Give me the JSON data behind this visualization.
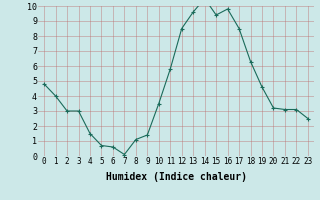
{
  "x": [
    0,
    1,
    2,
    3,
    4,
    5,
    6,
    7,
    8,
    9,
    10,
    11,
    12,
    13,
    14,
    15,
    16,
    17,
    18,
    19,
    20,
    21,
    22,
    23
  ],
  "y": [
    4.8,
    4.0,
    3.0,
    3.0,
    1.5,
    0.7,
    0.6,
    0.1,
    1.1,
    1.4,
    3.5,
    5.8,
    8.5,
    9.6,
    10.5,
    9.4,
    9.8,
    8.5,
    6.3,
    4.6,
    3.2,
    3.1,
    3.1,
    2.5
  ],
  "xlabel": "Humidex (Indice chaleur)",
  "bg_color": "#cce8e8",
  "grid_color": "#bb6666",
  "line_color": "#1a6b5a",
  "marker_color": "#1a6b5a",
  "xlim_min": -0.5,
  "xlim_max": 23.5,
  "ylim_min": 0,
  "ylim_max": 10,
  "yticks": [
    0,
    1,
    2,
    3,
    4,
    5,
    6,
    7,
    8,
    9,
    10
  ],
  "xticks": [
    0,
    1,
    2,
    3,
    4,
    5,
    6,
    7,
    8,
    9,
    10,
    11,
    12,
    13,
    14,
    15,
    16,
    17,
    18,
    19,
    20,
    21,
    22,
    23
  ],
  "xlabel_fontsize": 7,
  "tick_fontsize": 5.5
}
